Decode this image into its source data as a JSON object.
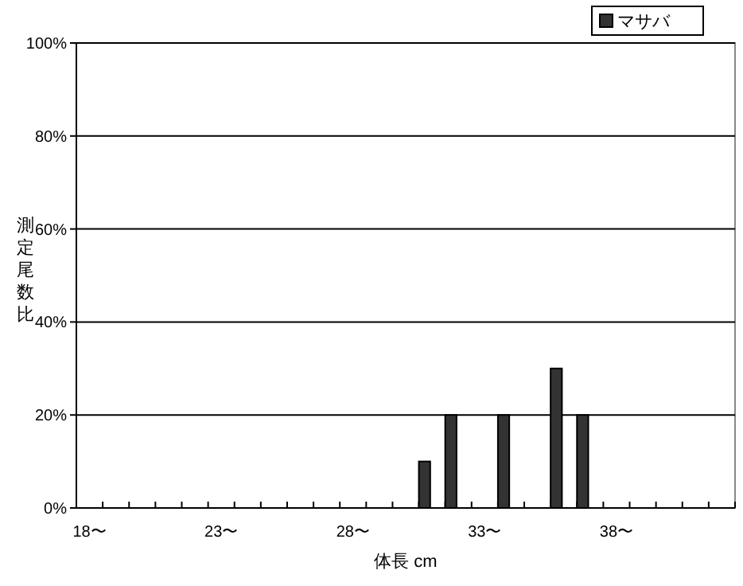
{
  "chart_data": {
    "type": "bar",
    "xlabel": "体長 cm",
    "ylabel": "測定尾数比",
    "categories": [
      "18〜",
      null,
      null,
      null,
      null,
      "23〜",
      null,
      null,
      null,
      null,
      "28〜",
      null,
      null,
      null,
      null,
      "33〜",
      null,
      null,
      null,
      null,
      "38〜",
      null,
      null,
      null,
      null
    ],
    "series": [
      {
        "name": "マサバ",
        "color": "#333333",
        "values": [
          0,
          0,
          0,
          0,
          0,
          0,
          0,
          0,
          0,
          0,
          0,
          0,
          0,
          10,
          20,
          0,
          20,
          0,
          30,
          20,
          0,
          0,
          0,
          0,
          0
        ]
      }
    ],
    "ylim": [
      0,
      100
    ],
    "yticks": [
      {
        "value": 0,
        "label": "0%"
      },
      {
        "value": 20,
        "label": "20%"
      },
      {
        "value": 40,
        "label": "40%"
      },
      {
        "value": 60,
        "label": "60%"
      },
      {
        "value": 80,
        "label": "80%"
      },
      {
        "value": 100,
        "label": "100%"
      }
    ],
    "grid": "y",
    "legend": "top right"
  }
}
